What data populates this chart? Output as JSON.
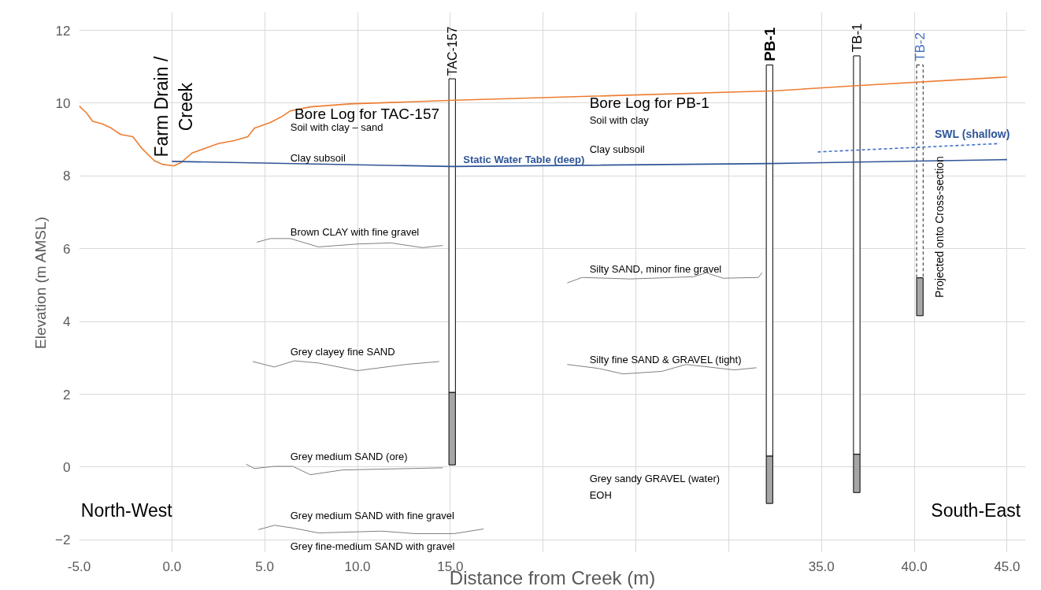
{
  "chart_data": {
    "type": "line",
    "xlabel": "Distance from Creek (m)",
    "ylabel": "Elevation (m AMSL)",
    "xlim": [
      -5,
      46
    ],
    "ylim": [
      -2.35,
      12.5
    ],
    "xticks": [
      {
        "value": -5,
        "label": "-5.0"
      },
      {
        "value": 0,
        "label": "0.0"
      },
      {
        "value": 5,
        "label": "5.0"
      },
      {
        "value": 10,
        "label": "10.0"
      },
      {
        "value": 15,
        "label": "15.0"
      },
      {
        "value": 20,
        "label": null
      },
      {
        "value": 25,
        "label": null
      },
      {
        "value": 30,
        "label": null
      },
      {
        "value": 35,
        "label": "35.0"
      },
      {
        "value": 40,
        "label": "40.0"
      },
      {
        "value": 45,
        "label": "45.0"
      }
    ],
    "yticks": [
      -2,
      0,
      2,
      4,
      6,
      8,
      10,
      12
    ],
    "grid": true,
    "series": [
      {
        "type": "bar",
        "color": "#000000",
        "x": [
          15.1,
          32.2,
          36.9
        ],
        "base": [
          2.05,
          0.3,
          0.35
        ],
        "values": [
          8.62,
          10.75,
          10.95
        ]
      },
      {
        "type": "bar",
        "color": "#262626",
        "line_style": "dashed",
        "x": [
          40.3
        ],
        "base": [
          5.2
        ],
        "values": [
          5.85
        ]
      },
      {
        "type": "bar",
        "color": "#a6a6a6",
        "x": [
          15.1,
          32.2,
          36.9,
          40.3
        ],
        "base": [
          0.06,
          -1.0,
          -0.7,
          4.16
        ],
        "values": [
          1.99,
          1.3,
          1.05,
          1.04
        ]
      },
      {
        "color": "#ed7d31",
        "x": [
          -5.0,
          -4.6,
          -4.27,
          -3.75,
          -3.32,
          -2.76,
          -2.11,
          -1.59,
          -0.95,
          -0.52,
          0.09,
          0.47,
          1.08,
          2.5,
          3.36,
          4.09,
          4.44,
          5.3,
          5.95,
          6.38,
          7.46,
          9.6,
          15.2,
          32.5,
          36.9,
          45
        ],
        "values": [
          9.92,
          9.73,
          9.5,
          9.43,
          9.33,
          9.14,
          9.08,
          8.74,
          8.42,
          8.32,
          8.28,
          8.36,
          8.63,
          8.89,
          8.97,
          9.08,
          9.31,
          9.47,
          9.64,
          9.79,
          9.9,
          9.98,
          10.08,
          10.34,
          10.48,
          10.72
        ]
      },
      {
        "color": "#2f5597",
        "x": [
          0,
          15.1,
          32.2,
          36.9,
          45
        ],
        "values": [
          8.4,
          8.26,
          8.34,
          8.38,
          8.45
        ]
      },
      {
        "color": "#4472c4",
        "line_style": "dashed",
        "x": [
          34.8,
          44.6
        ],
        "values": [
          8.66,
          8.89
        ]
      },
      {
        "color": "#7f7f7f",
        "x": [
          4.57,
          5.3,
          6.38,
          7.89,
          10.0,
          11.8,
          13.5,
          14.6
        ],
        "values": [
          6.18,
          6.28,
          6.28,
          6.05,
          6.13,
          6.16,
          6.03,
          6.09
        ]
      },
      {
        "color": "#7f7f7f",
        "x": [
          21.3,
          22.1,
          24.7,
          28.1,
          28.8,
          29.7,
          31.6,
          31.8
        ],
        "values": [
          5.06,
          5.21,
          5.17,
          5.23,
          5.34,
          5.19,
          5.21,
          5.34
        ]
      },
      {
        "color": "#7f7f7f",
        "x": [
          4.35,
          5.52,
          6.59,
          7.89,
          10.0,
          12.6,
          14.4
        ],
        "values": [
          2.9,
          2.75,
          2.92,
          2.86,
          2.65,
          2.82,
          2.9
        ]
      },
      {
        "color": "#7f7f7f",
        "x": [
          21.3,
          23.0,
          24.3,
          26.4,
          27.7,
          30.3,
          31.5
        ],
        "values": [
          2.82,
          2.71,
          2.56,
          2.63,
          2.82,
          2.67,
          2.73
        ]
      },
      {
        "color": "#7f7f7f",
        "x": [
          4.0,
          4.44,
          5.52,
          6.51,
          7.46,
          9.18,
          14.6
        ],
        "values": [
          0.08,
          -0.04,
          0.02,
          0.02,
          -0.21,
          -0.08,
          -0.02
        ]
      },
      {
        "color": "#7f7f7f",
        "x": [
          4.66,
          5.52,
          6.59,
          7.89,
          11.3,
          13.1,
          15.2,
          16.8
        ],
        "values": [
          -1.72,
          -1.6,
          -1.68,
          -1.81,
          -1.76,
          -1.83,
          -1.83,
          -1.7
        ]
      }
    ],
    "annotations": [
      "Farm Drain /\nCreek",
      "TAC-157",
      "PB-1",
      "TB-1",
      "TB-2",
      "Bore Log for TAC-157",
      "Soil with clay – sand",
      "Clay subsoil",
      "Brown CLAY with fine gravel",
      "Grey clayey fine SAND",
      "Grey medium SAND (ore)",
      "Grey medium SAND with fine gravel",
      "Grey fine-medium SAND with gravel",
      "Bore Log for PB-1",
      "Soil with clay",
      "Clay subsoil",
      "Static Water Table (deep)",
      "Silty SAND, minor fine gravel",
      "Silty fine SAND & GRAVEL (tight)",
      "Grey sandy GRAVEL (water)",
      "EOH",
      "SWL (shallow)",
      "Projected onto Cross-section",
      "North-West",
      "South-East"
    ]
  }
}
